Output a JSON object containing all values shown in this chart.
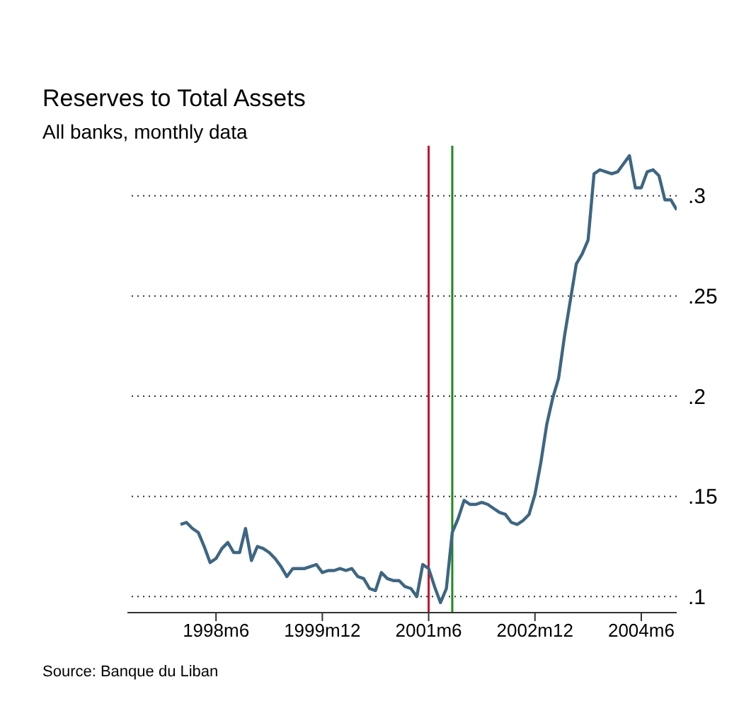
{
  "chart_data": {
    "type": "line",
    "title": "Reserves to Total Assets",
    "subtitle": "All banks, monthly data",
    "annotations": [
      "Source: Banque du Liban"
    ],
    "x": [
      "1997-12",
      "1998-01",
      "1998-02",
      "1998-03",
      "1998-04",
      "1998-05",
      "1998-06",
      "1998-07",
      "1998-08",
      "1998-09",
      "1998-10",
      "1998-11",
      "1998-12",
      "1999-01",
      "1999-02",
      "1999-03",
      "1999-04",
      "1999-05",
      "1999-06",
      "1999-07",
      "1999-08",
      "1999-09",
      "1999-10",
      "1999-11",
      "1999-12",
      "2000-01",
      "2000-02",
      "2000-03",
      "2000-04",
      "2000-05",
      "2000-06",
      "2000-07",
      "2000-08",
      "2000-09",
      "2000-10",
      "2000-11",
      "2000-12",
      "2001-01",
      "2001-02",
      "2001-03",
      "2001-04",
      "2001-05",
      "2001-06",
      "2001-07",
      "2001-08",
      "2001-09",
      "2001-10",
      "2001-11",
      "2001-12",
      "2002-01",
      "2002-02",
      "2002-03",
      "2002-04",
      "2002-05",
      "2002-06",
      "2002-07",
      "2002-08",
      "2002-09",
      "2002-10",
      "2002-11",
      "2002-12",
      "2003-01",
      "2003-02",
      "2003-03",
      "2003-04",
      "2003-05",
      "2003-06",
      "2003-07",
      "2003-08",
      "2003-09",
      "2003-10",
      "2003-11",
      "2003-12",
      "2004-01",
      "2004-02",
      "2004-03",
      "2004-04",
      "2004-05",
      "2004-06",
      "2004-07",
      "2004-08",
      "2004-09",
      "2004-10",
      "2004-11",
      "2004-12"
    ],
    "series": [
      {
        "color": "#3e6682",
        "values": [
          0.136,
          0.137,
          0.134,
          0.132,
          0.125,
          0.117,
          0.119,
          0.124,
          0.127,
          0.122,
          0.122,
          0.134,
          0.118,
          0.125,
          0.124,
          0.122,
          0.119,
          0.115,
          0.11,
          0.114,
          0.114,
          0.114,
          0.115,
          0.116,
          0.112,
          0.113,
          0.113,
          0.114,
          0.113,
          0.114,
          0.11,
          0.109,
          0.104,
          0.103,
          0.112,
          0.109,
          0.108,
          0.108,
          0.105,
          0.104,
          0.1,
          0.116,
          0.114,
          0.105,
          0.097,
          0.104,
          0.132,
          0.139,
          0.148,
          0.146,
          0.146,
          0.147,
          0.146,
          0.144,
          0.142,
          0.141,
          0.137,
          0.136,
          0.138,
          0.141,
          0.151,
          0.167,
          0.186,
          0.199,
          0.209,
          0.23,
          0.248,
          0.266,
          0.271,
          0.278,
          0.311,
          0.313,
          0.312,
          0.311,
          0.312,
          0.316,
          0.32,
          0.304,
          0.304,
          0.312,
          0.313,
          0.31,
          0.298,
          0.298,
          0.293
        ]
      }
    ],
    "xlim": [
      "1997-03",
      "2004-12"
    ],
    "xticks": [
      {
        "value": "1998-06",
        "label": "1998m6"
      },
      {
        "value": "1999-12",
        "label": "1999m12"
      },
      {
        "value": "2001-06",
        "label": "2001m6"
      },
      {
        "value": "2002-12",
        "label": "2002m12"
      },
      {
        "value": "2004-06",
        "label": "2004m6"
      }
    ],
    "ylim": [
      0.092,
      0.325
    ],
    "yticks": [
      {
        "value": 0.1,
        "label": ".1"
      },
      {
        "value": 0.15,
        "label": ".15"
      },
      {
        "value": 0.2,
        "label": ".2"
      },
      {
        "value": 0.25,
        "label": ".25"
      },
      {
        "value": 0.3,
        "label": ".3"
      }
    ],
    "ref_lines": [
      {
        "axis": "x",
        "value": "2001-06",
        "color": "#c8102e"
      },
      {
        "axis": "x",
        "value": "2001-10",
        "color": "#1f8a1f"
      }
    ],
    "grid": "y",
    "marker": "none",
    "line_style": "solid"
  }
}
